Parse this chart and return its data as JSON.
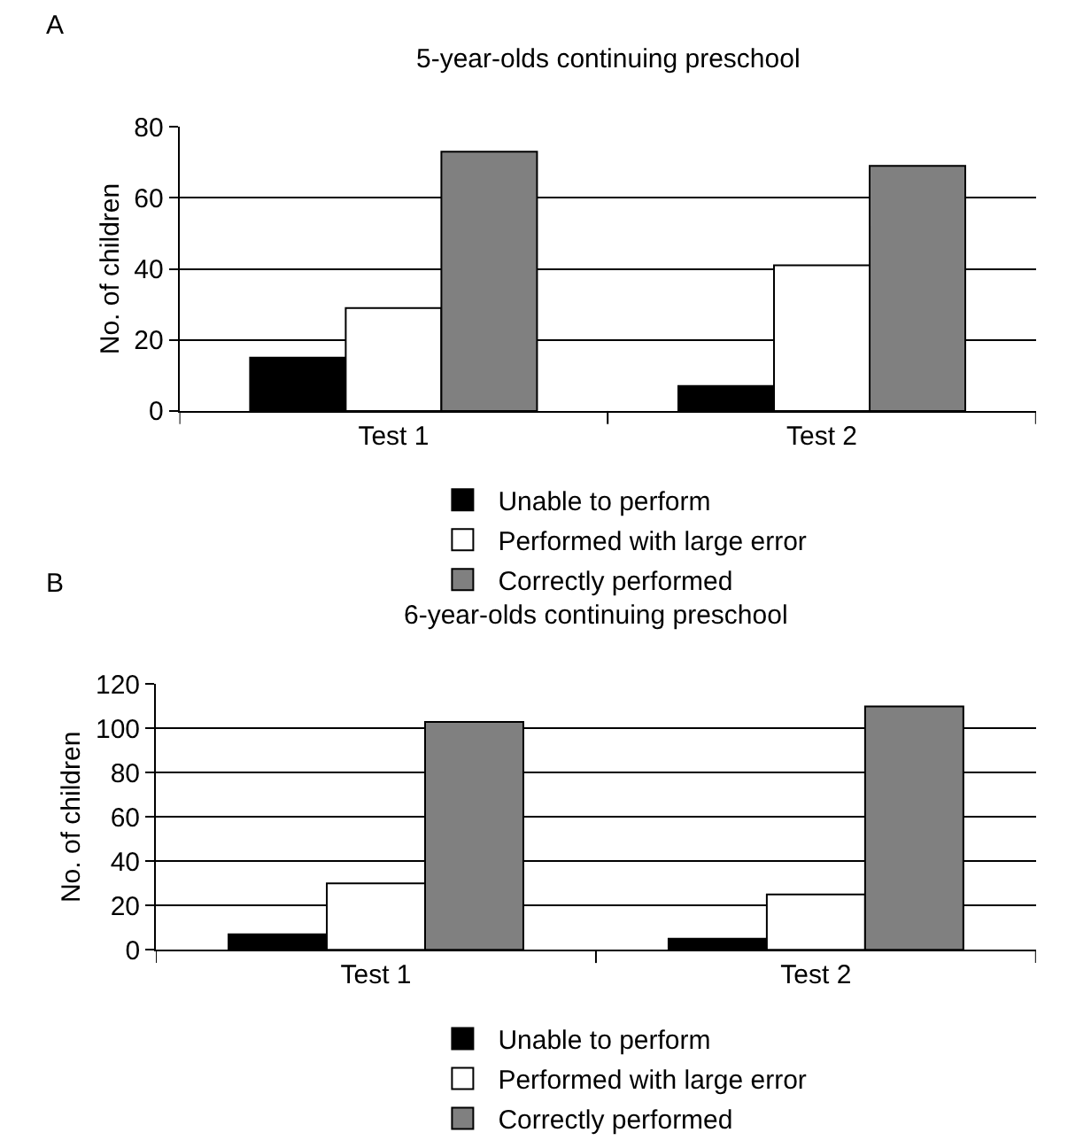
{
  "chart_data": [
    {
      "type": "bar",
      "title": "5-year-olds continuing preschool",
      "ylabel": "No. of children",
      "annotations": [
        "A"
      ],
      "categories": [
        "Test 1",
        "Test 2"
      ],
      "series": [
        {
          "name": "Unable to perform",
          "color": "#000000",
          "values": [
            15,
            7
          ]
        },
        {
          "name": "Performed with large error",
          "color": "#ffffff",
          "values": [
            29,
            41
          ]
        },
        {
          "name": "Correctly performed",
          "color": "#808080",
          "values": [
            73,
            69
          ]
        }
      ],
      "ylim": [
        0,
        80
      ],
      "yticks": [
        0,
        20,
        40,
        60,
        80
      ],
      "grid": "y",
      "legend": "bottom"
    },
    {
      "type": "bar",
      "title": "6-year-olds continuing preschool",
      "ylabel": "No. of children",
      "annotations": [
        "B"
      ],
      "categories": [
        "Test 1",
        "Test 2"
      ],
      "series": [
        {
          "name": "Unable to perform",
          "color": "#000000",
          "values": [
            7,
            5
          ]
        },
        {
          "name": "Performed with large error",
          "color": "#ffffff",
          "values": [
            30,
            25
          ]
        },
        {
          "name": "Correctly performed",
          "color": "#808080",
          "values": [
            103,
            110
          ]
        }
      ],
      "ylim": [
        0,
        120
      ],
      "yticks": [
        0,
        20,
        40,
        60,
        80,
        100,
        120
      ],
      "grid": "y",
      "legend": "bottom"
    }
  ]
}
